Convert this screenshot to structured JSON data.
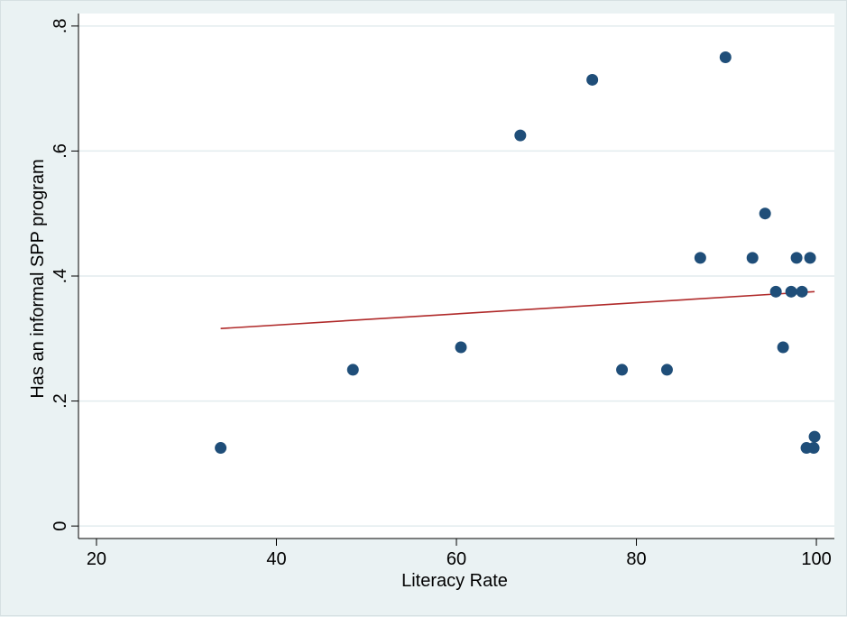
{
  "chart_data": {
    "type": "scatter",
    "xlabel": "Literacy Rate",
    "ylabel": "Has an informal SPP program",
    "xlim": [
      18,
      102
    ],
    "ylim": [
      -0.02,
      0.82
    ],
    "xticks": [
      20,
      40,
      60,
      80,
      100
    ],
    "xtick_labels": [
      "20",
      "40",
      "60",
      "80",
      "100"
    ],
    "yticks": [
      0,
      0.2,
      0.4,
      0.6,
      0.8
    ],
    "ytick_labels": [
      "0",
      ".2",
      ".4",
      ".6",
      ".8"
    ],
    "grid": true,
    "colors": {
      "points": "#1f4e79",
      "fit_line": "#b02a2a",
      "grid": "#e2ecee",
      "plot_bg": "#ffffff",
      "page_bg": "#eaf2f3"
    },
    "points": [
      {
        "x": 33.8,
        "y": 0.125
      },
      {
        "x": 48.5,
        "y": 0.25
      },
      {
        "x": 60.5,
        "y": 0.286
      },
      {
        "x": 67.1,
        "y": 0.625
      },
      {
        "x": 75.1,
        "y": 0.714
      },
      {
        "x": 78.4,
        "y": 0.25
      },
      {
        "x": 83.4,
        "y": 0.25
      },
      {
        "x": 87.1,
        "y": 0.429
      },
      {
        "x": 89.9,
        "y": 0.75
      },
      {
        "x": 92.9,
        "y": 0.429
      },
      {
        "x": 94.3,
        "y": 0.5
      },
      {
        "x": 95.5,
        "y": 0.375
      },
      {
        "x": 96.3,
        "y": 0.286
      },
      {
        "x": 97.2,
        "y": 0.375
      },
      {
        "x": 97.8,
        "y": 0.429
      },
      {
        "x": 98.4,
        "y": 0.375
      },
      {
        "x": 98.9,
        "y": 0.125
      },
      {
        "x": 99.3,
        "y": 0.429
      },
      {
        "x": 99.7,
        "y": 0.125
      },
      {
        "x": 99.8,
        "y": 0.143
      }
    ],
    "fit_line": {
      "x": [
        33.8,
        99.8
      ],
      "y": [
        0.316,
        0.375
      ]
    }
  }
}
